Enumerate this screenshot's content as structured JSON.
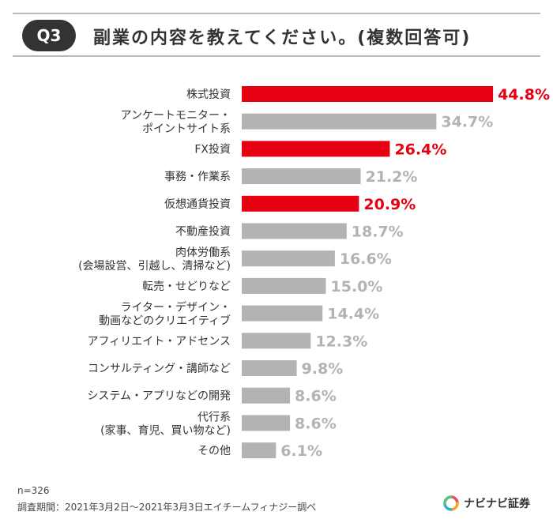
{
  "question": {
    "badge": "Q3",
    "text": "副業の内容を教えてください。(複数回答可)"
  },
  "chart_data": {
    "type": "bar",
    "orientation": "horizontal",
    "categories": [
      [
        "株式投資"
      ],
      [
        "アンケートモニター・",
        "ポイントサイト系"
      ],
      [
        "FX投資"
      ],
      [
        "事務・作業系"
      ],
      [
        "仮想通貨投資"
      ],
      [
        "不動産投資"
      ],
      [
        "肉体労働系",
        "(会場設営、引越し、清掃など)"
      ],
      [
        "転売・せどりなど"
      ],
      [
        "ライター・デザイン・",
        "動画などのクリエイティブ"
      ],
      [
        "アフィリエイト・アドセンス"
      ],
      [
        "コンサルティング・講師など"
      ],
      [
        "システム・アプリなどの開発"
      ],
      [
        "代行系",
        "(家事、育児、買い物など)"
      ],
      [
        "その他"
      ]
    ],
    "values": [
      44.8,
      34.7,
      26.4,
      21.2,
      20.9,
      18.7,
      16.6,
      15.0,
      14.4,
      12.3,
      9.8,
      8.6,
      8.6,
      6.1
    ],
    "value_labels": [
      "44.8%",
      "34.7%",
      "26.4%",
      "21.2%",
      "20.9%",
      "18.7%",
      "16.6%",
      "15.0%",
      "14.4%",
      "12.3%",
      "9.8%",
      "8.6%",
      "8.6%",
      "6.1%"
    ],
    "highlighted": [
      true,
      false,
      true,
      false,
      true,
      false,
      false,
      false,
      false,
      false,
      false,
      false,
      false,
      false
    ],
    "colors": {
      "highlight_bar": "#e60012",
      "highlight_label": "#e60012",
      "normal_bar": "#b3b3b3",
      "normal_label": "#b3b3b3"
    }
  },
  "footnotes": {
    "sample": "n=326",
    "period": "調査期間：2021年3月2日～2021年3月3日エイチームフィナジー調べ"
  },
  "logo": {
    "name": "ナビナビ証券",
    "icon": "navinavi-logo-icon"
  }
}
